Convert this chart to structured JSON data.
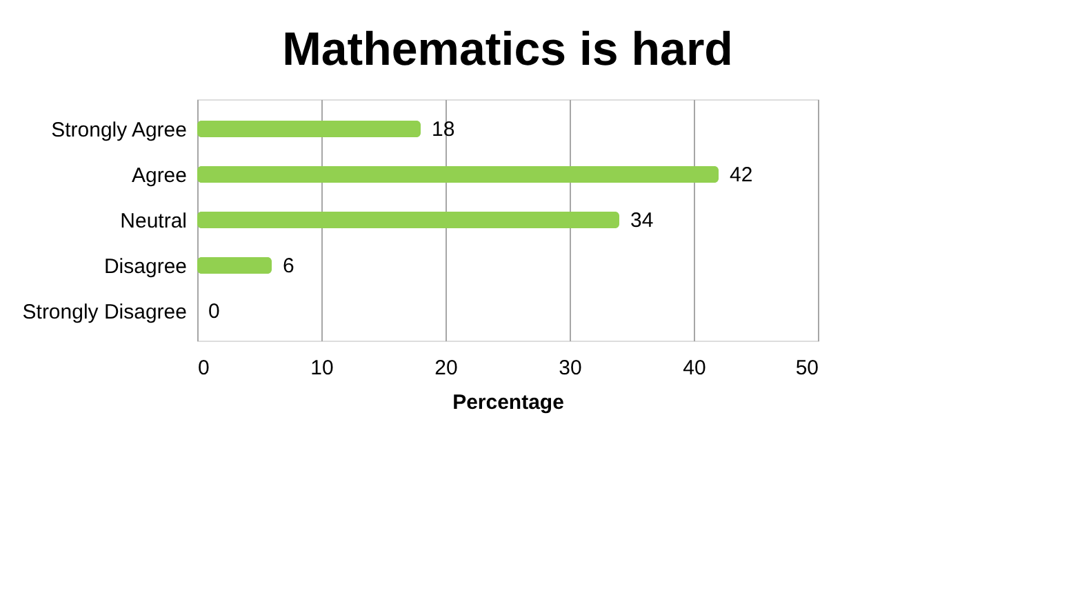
{
  "chart_data": {
    "type": "bar",
    "orientation": "horizontal",
    "title": "Mathematics is hard",
    "xlabel": "Percentage",
    "categories": [
      "Strongly Agree",
      "Agree",
      "Neutral",
      "Disagree",
      "Strongly Disagree"
    ],
    "values": [
      18,
      42,
      34,
      6,
      0
    ],
    "color": "#92d050",
    "xlim": [
      0,
      50
    ],
    "xticks": [
      0,
      10,
      20,
      30,
      40,
      50
    ],
    "grid": "x",
    "data_labels": true
  }
}
